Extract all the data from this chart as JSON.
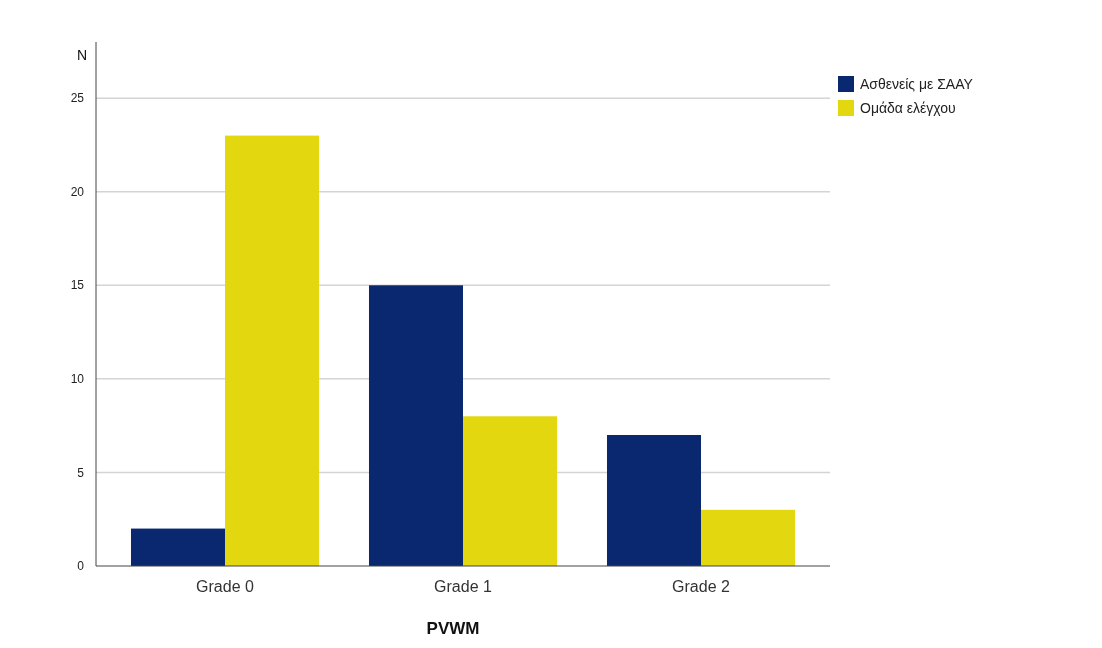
{
  "chart_data": {
    "type": "bar",
    "xlabel": "PVWM",
    "ylabel": "N",
    "categories": [
      "Grade 0",
      "Grade 1",
      "Grade 2"
    ],
    "series": [
      {
        "name": "Ασθενείς με ΣΑΑΥ",
        "color": "#0a2870",
        "values": [
          2,
          15,
          7
        ]
      },
      {
        "name": "Ομάδα ελέγχου",
        "color": "#e3d70f",
        "values": [
          23,
          8,
          3
        ]
      }
    ],
    "ylim": [
      0,
      28
    ],
    "yticks": [
      0,
      5,
      10,
      15,
      20,
      25
    ],
    "grid": "y",
    "legend": "top right"
  }
}
